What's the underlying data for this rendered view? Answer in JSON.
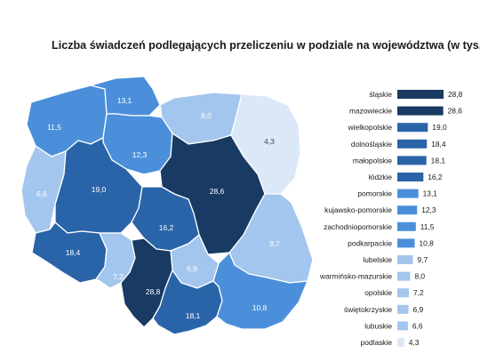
{
  "title": "Liczba świadczeń podlegających przeliczeniu w podziale na województwa (w tys.)",
  "chart_data": [
    {
      "type": "bar",
      "orientation": "horizontal",
      "categories": [
        "śląskie",
        "mazowieckie",
        "wielkopolskie",
        "dolnośląskie",
        "małopolskie",
        "łódzkie",
        "pomorskie",
        "kujawsko-pomorskie",
        "zachodniopomorskie",
        "podkarpackie",
        "lubelskie",
        "warmińsko-mazurskie",
        "opolskie",
        "świętokrzyskie",
        "lubuskie",
        "podlaskie"
      ],
      "values": [
        28.8,
        28.6,
        19.0,
        18.4,
        18.1,
        16.2,
        13.1,
        12.3,
        11.5,
        10.8,
        9.7,
        8.0,
        7.2,
        6.9,
        6.6,
        4.3
      ],
      "value_labels": [
        "28,8",
        "28,6",
        "19,0",
        "18,4",
        "18,1",
        "16,2",
        "13,1",
        "12,3",
        "11,5",
        "10,8",
        "9,7",
        "8,0",
        "7,2",
        "6,9",
        "6,6",
        "4,3"
      ],
      "xlim": [
        0,
        28.8
      ],
      "colors": [
        "#183a63",
        "#183a63",
        "#2a64a8",
        "#2a64a8",
        "#2a64a8",
        "#2a64a8",
        "#4b8fdb",
        "#4b8fdb",
        "#4b8fdb",
        "#4b8fdb",
        "#a3c6ee",
        "#a3c6ee",
        "#a3c6ee",
        "#a3c6ee",
        "#a3c6ee",
        "#dbe8f8"
      ]
    },
    {
      "type": "choropleth-map",
      "regions": [
        {
          "name": "zachodniopomorskie",
          "value": 11.5,
          "label": "11,5",
          "color": "#4b8fdb"
        },
        {
          "name": "pomorskie",
          "value": 13.1,
          "label": "13,1",
          "color": "#4b8fdb"
        },
        {
          "name": "warmińsko-mazurskie",
          "value": 8.0,
          "label": "8,0",
          "color": "#a3c6ee"
        },
        {
          "name": "podlaskie",
          "value": 4.3,
          "label": "4,3",
          "color": "#dbe8f8"
        },
        {
          "name": "kujawsko-pomorskie",
          "value": 12.3,
          "label": "12,3",
          "color": "#4b8fdb"
        },
        {
          "name": "lubuskie",
          "value": 6.6,
          "label": "6,6",
          "color": "#a3c6ee"
        },
        {
          "name": "wielkopolskie",
          "value": 19.0,
          "label": "19,0",
          "color": "#2a64a8"
        },
        {
          "name": "mazowieckie",
          "value": 28.6,
          "label": "28,6",
          "color": "#183a63"
        },
        {
          "name": "łódzkie",
          "value": 16.2,
          "label": "16,2",
          "color": "#2a64a8"
        },
        {
          "name": "lubelskie",
          "value": 9.7,
          "label": "9,7",
          "color": "#a3c6ee"
        },
        {
          "name": "dolnośląskie",
          "value": 18.4,
          "label": "18,4",
          "color": "#2a64a8"
        },
        {
          "name": "opolskie",
          "value": 7.2,
          "label": "7,2",
          "color": "#a3c6ee"
        },
        {
          "name": "świętokrzyskie",
          "value": 6.9,
          "label": "6,9",
          "color": "#a3c6ee"
        },
        {
          "name": "śląskie",
          "value": 28.8,
          "label": "28,8",
          "color": "#183a63"
        },
        {
          "name": "małopolskie",
          "value": 18.1,
          "label": "18,1",
          "color": "#2a64a8"
        },
        {
          "name": "podkarpackie",
          "value": 10.8,
          "label": "10,8",
          "color": "#4b8fdb"
        }
      ]
    }
  ]
}
